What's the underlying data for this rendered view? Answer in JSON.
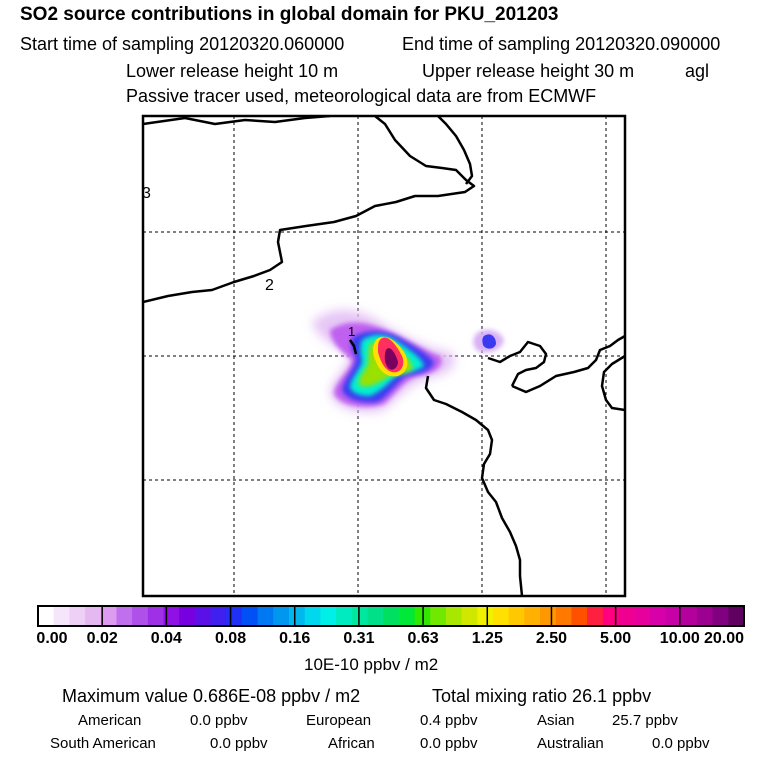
{
  "header": {
    "title": "SO2 source contributions in global domain for PKU_201203",
    "start_time": "Start time of sampling 20120320.060000",
    "end_time": "End time of sampling 20120320.090000",
    "lower_height": "Lower release height   10 m",
    "upper_height": "Upper release height   30 m",
    "agl": "agl",
    "tracer_note": "Passive tracer used, meteorological data are from ECMWF"
  },
  "map": {
    "grid_labels": [
      "3",
      "2",
      "1"
    ],
    "plume_colors": [
      "#e6c6f6",
      "#c060f0",
      "#8a2be2",
      "#3a3af0",
      "#00a0ff",
      "#00f0d0",
      "#9ae000",
      "#ffe000",
      "#ff3060",
      "#7a0060"
    ]
  },
  "colorbar": {
    "colors": [
      "#ffffff",
      "#f6e6fb",
      "#eed0f6",
      "#e6b8f2",
      "#dd9cef",
      "#c070ec",
      "#b050ea",
      "#a030e8",
      "#9010e6",
      "#7800e0",
      "#5a10e6",
      "#4020ee",
      "#2030f6",
      "#0050f6",
      "#0078f2",
      "#0098ee",
      "#00b8ee",
      "#00d8ee",
      "#00f0e8",
      "#00ecc0",
      "#00e8a0",
      "#00e088",
      "#00e060",
      "#00e838",
      "#30e800",
      "#70e800",
      "#a8e800",
      "#d0e800",
      "#f0f000",
      "#ffe000",
      "#ffc800",
      "#ffb000",
      "#ff9800",
      "#ff7800",
      "#ff5000",
      "#ff2040",
      "#ff0080",
      "#f00090",
      "#e8009c",
      "#d800a8",
      "#c800a8",
      "#b4009c",
      "#9c0090",
      "#800080",
      "#600060"
    ],
    "ticks": [
      "0.00",
      "0.02",
      "0.04",
      "0.08",
      "0.16",
      "0.31",
      "0.63",
      "1.25",
      "2.50",
      "5.00",
      "10.00",
      "20.00"
    ],
    "units": "10E-10 ppbv / m2"
  },
  "summary": {
    "max_value": "Maximum value  0.686E-08 ppbv / m2",
    "total_mixing": "Total mixing ratio      26.1 ppbv",
    "sources": [
      {
        "name": "American",
        "value": "0.0 ppbv"
      },
      {
        "name": "European",
        "value": "0.4 ppbv"
      },
      {
        "name": "Asian",
        "value": "25.7 ppbv"
      },
      {
        "name": "South American",
        "value": "0.0 ppbv"
      },
      {
        "name": "African",
        "value": "0.0 ppbv"
      },
      {
        "name": "Australian",
        "value": "0.0 ppbv"
      }
    ]
  }
}
